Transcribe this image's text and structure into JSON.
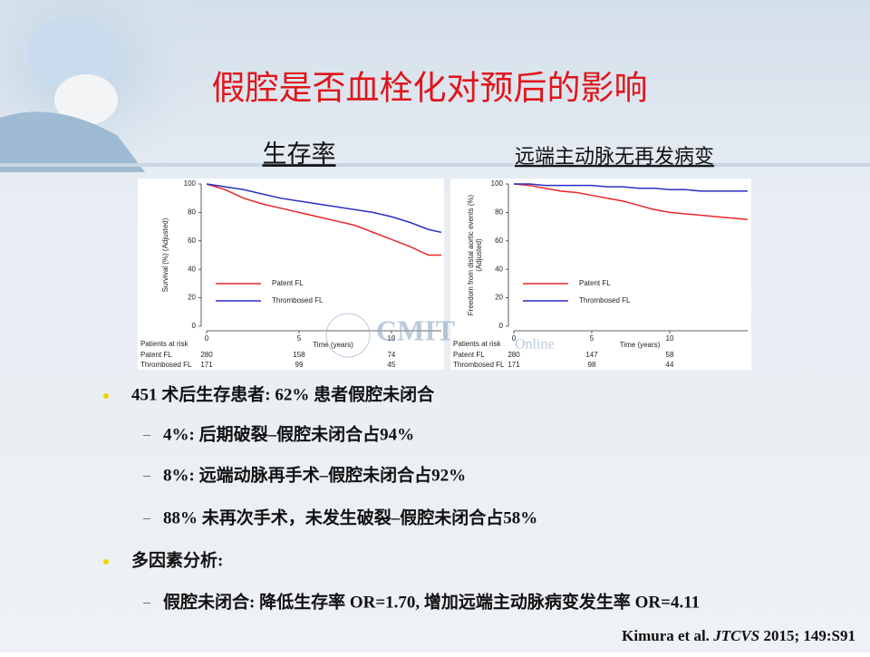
{
  "title": "假腔是否血栓化对预后的影响",
  "chart_data": [
    {
      "type": "line",
      "subtitle": "生存率",
      "ylabel": [
        "Survival (%) (Adjusted)"
      ],
      "xlabel": "Time (years)",
      "xlim": [
        0,
        12.7
      ],
      "ylim": [
        0,
        100
      ],
      "xticks": [
        0,
        5,
        10
      ],
      "yticks": [
        0,
        20,
        40,
        60,
        80,
        100
      ],
      "x": [
        0,
        1,
        2,
        3,
        4,
        5,
        6,
        7,
        8,
        9,
        10,
        11,
        12,
        12.7
      ],
      "series": [
        {
          "name": "Patent FL",
          "color": "#e8262a",
          "values": [
            100,
            96,
            90,
            86,
            83,
            80,
            77,
            74,
            71,
            66,
            61,
            56,
            50,
            50
          ]
        },
        {
          "name": "Thrombosed FL",
          "color": "#2b2fc4",
          "values": [
            100,
            98,
            96,
            93,
            90,
            88,
            86,
            84,
            82,
            80,
            77,
            73,
            68,
            66
          ]
        }
      ],
      "risk_table": {
        "title": "Patients at risk",
        "rows": [
          {
            "label": "Patent FL",
            "values": [
              280,
              158,
              74
            ]
          },
          {
            "label": "Thrombosed FL",
            "values": [
              171,
              99,
              45
            ]
          }
        ]
      }
    },
    {
      "type": "line",
      "subtitle": "远端主动脉无再发病变",
      "ylabel": [
        "Freedom from distal aortic events (%)",
        "(Adjusted)"
      ],
      "xlabel": "Time (years)",
      "xlim": [
        0,
        15
      ],
      "ylim": [
        0,
        100
      ],
      "xticks": [
        0,
        5,
        10
      ],
      "yticks": [
        0,
        20,
        40,
        60,
        80,
        100
      ],
      "x": [
        0,
        1,
        2,
        3,
        4,
        5,
        6,
        7,
        8,
        9,
        10,
        11,
        12,
        13,
        14,
        15
      ],
      "series": [
        {
          "name": "Patent FL",
          "color": "#e8262a",
          "values": [
            100,
            99,
            97,
            95,
            94,
            92,
            90,
            88,
            85,
            82,
            80,
            79,
            78,
            77,
            76,
            75
          ]
        },
        {
          "name": "Thrombosed FL",
          "color": "#2b2fc4",
          "values": [
            100,
            100,
            99,
            99,
            99,
            99,
            98,
            98,
            97,
            97,
            96,
            96,
            95,
            95,
            95,
            95
          ]
        }
      ],
      "risk_table": {
        "title": "Patients at risk",
        "rows": [
          {
            "label": "Patent FL",
            "values": [
              280,
              147,
              58
            ]
          },
          {
            "label": "Thrombosed FL",
            "values": [
              171,
              98,
              44
            ]
          }
        ]
      }
    }
  ],
  "watermark": {
    "main": "CMIT",
    "sub": "Online"
  },
  "bullets": [
    {
      "text": "451 术后生存患者: 62% 患者假腔未闭合",
      "subs": [
        "4%: 后期破裂–假腔未闭合占94%",
        "8%: 远端动脉再手术–假腔未闭合占92%",
        "88% 未再次手术，未发生破裂–假腔未闭合占58%"
      ]
    },
    {
      "text": "多因素分析:",
      "subs": [
        "假腔未闭合: 降低生存率 OR=1.70, 增加远端主动脉病变发生率 OR=4.11"
      ]
    }
  ],
  "citation": {
    "author": "Kimura  et al. ",
    "journal": "JTCVS",
    "rest": " 2015; 149:S91"
  }
}
